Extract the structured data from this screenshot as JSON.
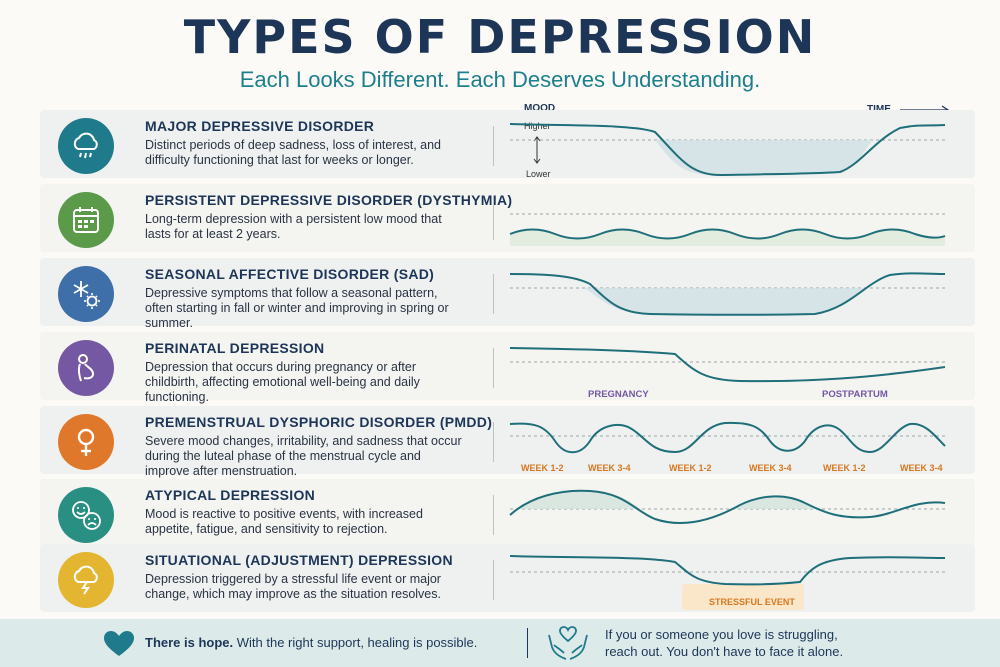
{
  "header": {
    "title": "TYPES OF DEPRESSION",
    "subtitle": "Each Looks Different. Each Deserves Understanding."
  },
  "axis": {
    "mood": "MOOD",
    "time": "TIME",
    "higher": "Higher",
    "lower": "Lower"
  },
  "rows": [
    {
      "title": "MAJOR DEPRESSIVE DISORDER",
      "desc": "Distinct periods of deep sadness, loss of interest, and difficulty functioning that last for weeks or longer.",
      "color": "#1f7a8c",
      "icon": "cloud-rain-icon"
    },
    {
      "title": "PERSISTENT DEPRESSIVE DISORDER (DYSTHYMIA)",
      "desc": "Long-term depression with a persistent low mood that lasts for at least 2 years.",
      "color": "#5a9a48",
      "icon": "calendar-icon"
    },
    {
      "title": "SEASONAL AFFECTIVE DISORDER (SAD)",
      "desc": "Depressive symptoms that follow a seasonal pattern, often starting in fall or winter and improving in spring or summer.",
      "color": "#3e6fa8",
      "icon": "snowflake-sun-icon"
    },
    {
      "title": "PERINATAL DEPRESSION",
      "desc": "Depression that occurs during pregnancy or after childbirth, affecting emotional well-being and daily functioning.",
      "color": "#7558a3",
      "icon": "pregnant-figure-icon",
      "labels": [
        "PREGNANCY",
        "POSTPARTUM"
      ]
    },
    {
      "title": "PREMENSTRUAL DYSPHORIC DISORDER (PMDD)",
      "desc": "Severe mood changes, irritability, and sadness that occur during the luteal phase of the menstrual cycle and improve after menstruation.",
      "color": "#e0782b",
      "icon": "female-symbol-icon",
      "labels": [
        "WEEK 1-2",
        "WEEK 3-4",
        "WEEK 1-2",
        "WEEK 3-4",
        "WEEK 1-2",
        "WEEK 3-4"
      ]
    },
    {
      "title": "ATYPICAL DEPRESSION",
      "desc": "Mood is reactive to positive events, with increased appetite, fatigue, and sensitivity to rejection.",
      "color": "#2a8f83",
      "icon": "happy-sad-faces-icon"
    },
    {
      "title": "SITUATIONAL (ADJUSTMENT) DEPRESSION",
      "desc": "Depression triggered by a stressful life event or major change, which may improve as the situation resolves.",
      "color": "#e3b530",
      "icon": "storm-cloud-icon",
      "labels": [
        "STRESSFUL EVENT"
      ]
    }
  ],
  "footer": {
    "hope_bold": "There is hope.",
    "hope_rest": "With the right support, healing is possible.",
    "reach_line1": "If you or someone you love is struggling,",
    "reach_line2": "reach out. You don't have to face it alone."
  },
  "colors": {
    "navy": "#1d3557",
    "teal": "#1d7f8c",
    "line": "#1f6f7a",
    "footer_bg": "#dcebea"
  }
}
